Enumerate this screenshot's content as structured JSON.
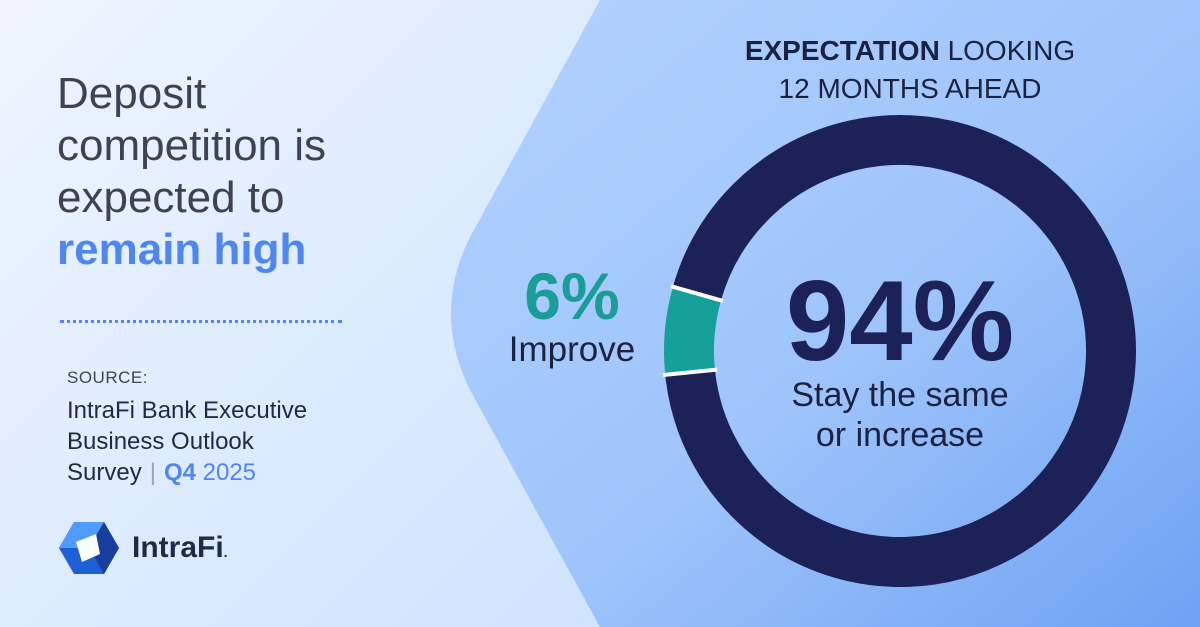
{
  "headline": {
    "line1": "Deposit",
    "line2": "competition is",
    "line3": "expected to",
    "accent": "remain high"
  },
  "source": {
    "label": "SOURCE:",
    "line1": "IntraFi Bank Executive",
    "line2": "Business Outlook",
    "line3": "Survey",
    "quarter": "Q4",
    "year": "2025"
  },
  "logo": {
    "text": "IntraFi",
    "trademark": "."
  },
  "chart_data": {
    "type": "pie",
    "title_bold": "EXPECTATION",
    "title_rest": "LOOKING",
    "title_line2": "12 MONTHS AHEAD",
    "slices": [
      {
        "label": "Stay the same or increase",
        "value": 94,
        "display": "94%",
        "label_line1": "Stay the same",
        "label_line2": "or increase",
        "color": "#1c2158"
      },
      {
        "label": "Improve",
        "value": 6,
        "display": "6%",
        "color": "#17a09a"
      }
    ]
  },
  "colors": {
    "accent": "#4f86f0",
    "teal": "#17a09a",
    "navy": "#1c2158",
    "text_dark": "#3f4350"
  }
}
